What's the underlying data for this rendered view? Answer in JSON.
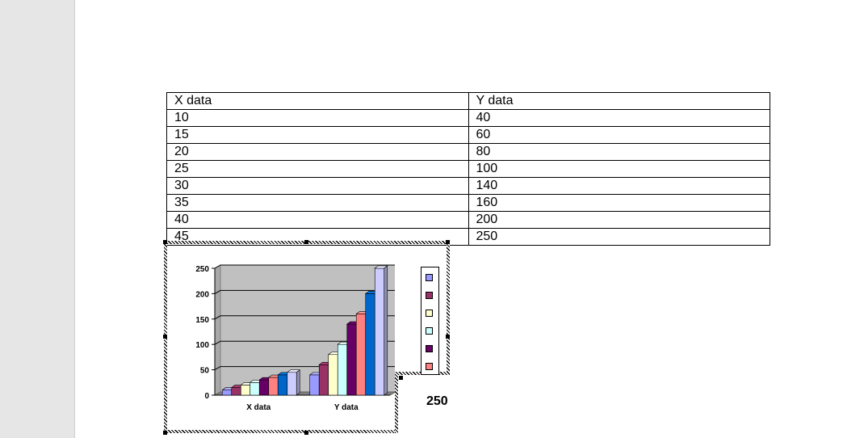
{
  "table": {
    "header": [
      "X data",
      "Y data"
    ],
    "rows": [
      [
        "10",
        "40"
      ],
      [
        "15",
        "60"
      ],
      [
        "20",
        "80"
      ],
      [
        "25",
        "100"
      ],
      [
        "30",
        "140"
      ],
      [
        "35",
        "160"
      ],
      [
        "40",
        "200"
      ],
      [
        "45",
        "250"
      ]
    ]
  },
  "tooltip_value": "250",
  "chart_data": {
    "type": "bar",
    "style": "3d-clustered-column",
    "categories": [
      "X data",
      "Y data"
    ],
    "series": [
      {
        "values": [
          10,
          40
        ],
        "color": "#9999ff"
      },
      {
        "values": [
          15,
          60
        ],
        "color": "#993366"
      },
      {
        "values": [
          20,
          80
        ],
        "color": "#ffffcc"
      },
      {
        "values": [
          25,
          100
        ],
        "color": "#ccffff"
      },
      {
        "values": [
          30,
          140
        ],
        "color": "#660066"
      },
      {
        "values": [
          35,
          160
        ],
        "color": "#ff8080"
      },
      {
        "values": [
          40,
          200
        ],
        "color": "#0066cc"
      },
      {
        "values": [
          45,
          250
        ],
        "color": "#ccccff"
      }
    ],
    "yticks": [
      "0",
      "50",
      "100",
      "150",
      "200",
      "250"
    ],
    "ylim": [
      0,
      250
    ],
    "grid": true,
    "plot_background": "#c0c0c0",
    "legend": "right"
  }
}
